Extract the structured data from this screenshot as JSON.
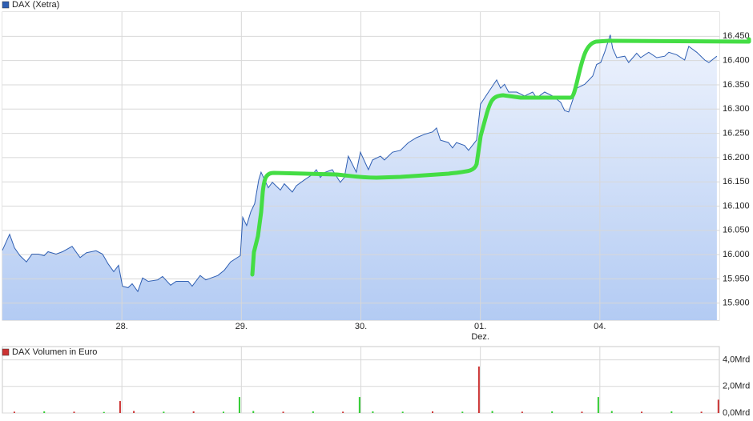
{
  "chart_data": [
    {
      "type": "area",
      "x": [
        0.0,
        0.06,
        0.101,
        0.147,
        0.201,
        0.248,
        0.302,
        0.349,
        0.382,
        0.449,
        0.503,
        0.583,
        0.65,
        0.704,
        0.784,
        0.838,
        0.885,
        0.932,
        0.972,
        1.005,
        1.052,
        1.086,
        1.133,
        1.173,
        1.22,
        1.3,
        1.34,
        1.408,
        1.454,
        1.555,
        1.588,
        1.655,
        1.702,
        1.803,
        1.857,
        1.91,
        1.991,
        2.011,
        2.044,
        2.078,
        2.111,
        2.145,
        2.165,
        2.225,
        2.259,
        2.326,
        2.359,
        2.426,
        2.46,
        2.527,
        2.594,
        2.627,
        2.661,
        2.694,
        2.761,
        2.828,
        2.862,
        2.895,
        2.962,
        2.996,
        3.063,
        3.097,
        3.164,
        3.197,
        3.264,
        3.331,
        3.398,
        3.465,
        3.532,
        3.599,
        3.633,
        3.666,
        3.733,
        3.767,
        3.8,
        3.867,
        3.901,
        3.968,
        4.001,
        4.068,
        4.136,
        4.169,
        4.202,
        4.236,
        4.303,
        4.37,
        4.437,
        4.471,
        4.538,
        4.604,
        4.672,
        4.705,
        4.739,
        4.772,
        4.806,
        4.873,
        4.94,
        4.973,
        5.007,
        5.04,
        5.087,
        5.107,
        5.141,
        5.208,
        5.241,
        5.308,
        5.342,
        5.409,
        5.476,
        5.543,
        5.577,
        5.643,
        5.71,
        5.744,
        5.811,
        5.878,
        5.912,
        5.979
      ],
      "series": [
        {
          "name": "DAX (Xetra)",
          "color": "#2f5fb3",
          "values": [
            16009,
            16042,
            16014,
            15998,
            15985,
            16001,
            16001,
            15998,
            16006,
            16001,
            16006,
            16017,
            15994,
            16004,
            16008,
            16001,
            15981,
            15965,
            15978,
            15935,
            15932,
            15940,
            15924,
            15952,
            15945,
            15948,
            15955,
            15937,
            15945,
            15945,
            15935,
            15957,
            15948,
            15957,
            15968,
            15985,
            15998,
            16077,
            16060,
            16088,
            16105,
            16154,
            16170,
            16138,
            16149,
            16133,
            16146,
            16129,
            16142,
            16154,
            16165,
            16175,
            16159,
            16169,
            16175,
            16149,
            16159,
            16203,
            16170,
            16211,
            16175,
            16195,
            16203,
            16195,
            16211,
            16215,
            16231,
            16241,
            16248,
            16253,
            16261,
            16236,
            16231,
            16220,
            16231,
            16225,
            16215,
            16236,
            16310,
            16335,
            16360,
            16343,
            16351,
            16335,
            16335,
            16327,
            16335,
            16323,
            16335,
            16327,
            16314,
            16297,
            16294,
            16318,
            16343,
            16351,
            16368,
            16392,
            16396,
            16417,
            16453,
            16425,
            16406,
            16409,
            16396,
            16415,
            16406,
            16417,
            16406,
            16409,
            16417,
            16412,
            16401,
            16429,
            16417,
            16401,
            16396,
            16409
          ]
        }
      ],
      "xlim": [
        0,
        6
      ],
      "xticks": [
        {
          "value": 1,
          "label": "28."
        },
        {
          "value": 2,
          "label": "29."
        },
        {
          "value": 3,
          "label": "30."
        },
        {
          "value": 4,
          "label": "01.",
          "sublabel": "Dez."
        },
        {
          "value": 5,
          "label": "04."
        }
      ],
      "ylim": [
        15865,
        16500
      ],
      "yticks": [
        {
          "value": 15900,
          "label": "15.900"
        },
        {
          "value": 15950,
          "label": "15.950"
        },
        {
          "value": 16000,
          "label": "16.000"
        },
        {
          "value": 16050,
          "label": "16.050"
        },
        {
          "value": 16100,
          "label": "16.100"
        },
        {
          "value": 16150,
          "label": "16.150"
        },
        {
          "value": 16200,
          "label": "16.200"
        },
        {
          "value": 16250,
          "label": "16.250"
        },
        {
          "value": 16300,
          "label": "16.300"
        },
        {
          "value": 16350,
          "label": "16.350"
        },
        {
          "value": 16400,
          "label": "16.400"
        },
        {
          "value": 16450,
          "label": "16.450"
        }
      ],
      "grid": true
    },
    {
      "type": "bar",
      "x": [
        0.1,
        0.35,
        0.6,
        0.85,
        0.985,
        1.1,
        1.35,
        1.6,
        1.85,
        1.984,
        2.1,
        2.35,
        2.6,
        2.85,
        2.989,
        3.1,
        3.35,
        3.6,
        3.85,
        3.988,
        4.1,
        4.35,
        4.6,
        4.85,
        4.987,
        5.1,
        5.35,
        5.6,
        5.85,
        5.992
      ],
      "series": [
        {
          "name": "DAX Volumen in Euro",
          "color": "#cc3333",
          "values": [
            0.1,
            0.12,
            0.1,
            0.08,
            0.9,
            0.15,
            0.1,
            0.12,
            0.1,
            1.2,
            0.15,
            0.1,
            0.12,
            0.1,
            1.2,
            0.12,
            0.1,
            0.12,
            0.1,
            3.5,
            0.15,
            0.1,
            0.12,
            0.1,
            1.2,
            0.15,
            0.1,
            0.12,
            0.1,
            1.0
          ],
          "colors": [
            "#cc3333",
            "#33cc33",
            "#cc3333",
            "#33cc33",
            "#cc3333",
            "#cc3333",
            "#33cc33",
            "#cc3333",
            "#33cc33",
            "#33cc33",
            "#33cc33",
            "#cc3333",
            "#33cc33",
            "#cc3333",
            "#33cc33",
            "#33cc33",
            "#33cc33",
            "#cc3333",
            "#33cc33",
            "#cc3333",
            "#33cc33",
            "#cc3333",
            "#33cc33",
            "#cc3333",
            "#33cc33",
            "#33cc33",
            "#cc3333",
            "#33cc33",
            "#cc3333",
            "#cc3333"
          ]
        }
      ],
      "xlim": [
        0,
        6
      ],
      "xticks": [
        1,
        2,
        3,
        4,
        5
      ],
      "ylim": [
        0,
        5
      ],
      "yticks": [
        {
          "value": 0,
          "label": "0,0Mrd"
        },
        {
          "value": 2,
          "label": "2,0Mrd"
        },
        {
          "value": 4,
          "label": "4,0Mrd"
        }
      ],
      "grid": true
    }
  ]
}
